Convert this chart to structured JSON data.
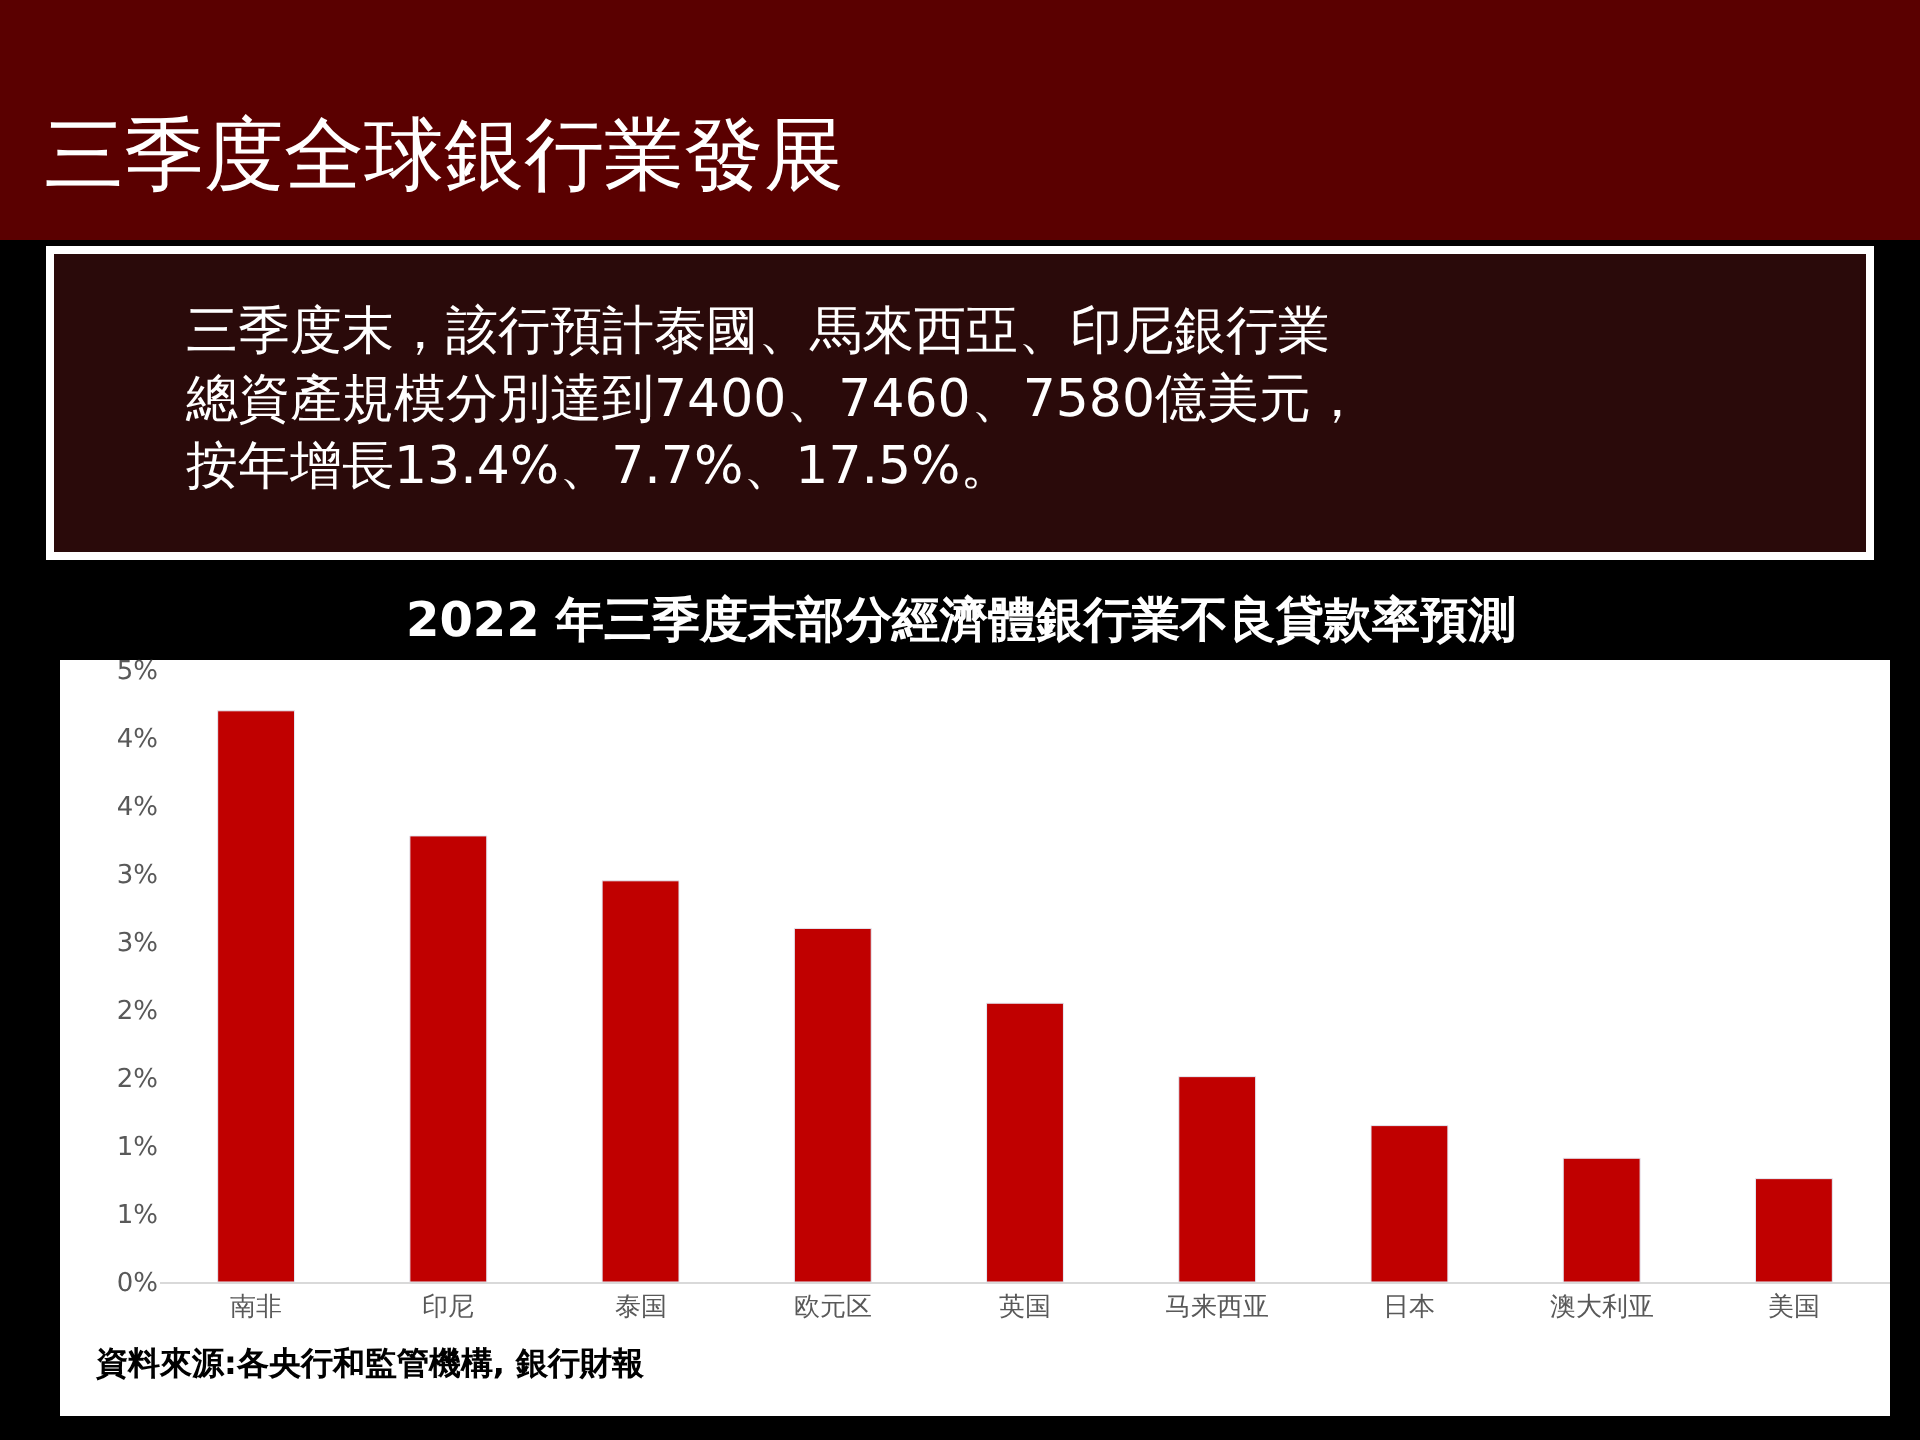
{
  "chart_data": {
    "type": "bar",
    "title": "三季度全球銀行業發展",
    "subtitle": "三季度末，該行預計泰國、馬來西亞、印尼銀行業總資產規模分別達到7400、7460、7580億美元，按年增長13.4%、7.7%、17.5%。",
    "annotations": [
      "2022 年三季度末部分經濟體銀行業不良貸款率預測",
      "資料來源:各央行和監管機構, 銀行財報"
    ],
    "categories": [
      "南非",
      "印尼",
      "泰国",
      "欧元区",
      "英国",
      "马来西亚",
      "日本",
      "澳大利亚",
      "美国"
    ],
    "values": [
      4.2,
      3.28,
      2.95,
      2.6,
      2.05,
      1.51,
      1.15,
      0.91,
      0.76
    ],
    "color": "#c00000",
    "ylim": [
      0,
      4.5
    ],
    "yticks": [
      {
        "value": 0,
        "label": "0%"
      },
      {
        "value": 0.5,
        "label": "1%"
      },
      {
        "value": 1,
        "label": "1%"
      },
      {
        "value": 1.5,
        "label": "2%"
      },
      {
        "value": 2,
        "label": "2%"
      },
      {
        "value": 2.5,
        "label": "3%"
      },
      {
        "value": 3,
        "label": "3%"
      },
      {
        "value": 3.5,
        "label": "4%"
      },
      {
        "value": 4,
        "label": "4%"
      },
      {
        "value": 4.5,
        "label": "5%"
      }
    ],
    "legend": false
  }
}
